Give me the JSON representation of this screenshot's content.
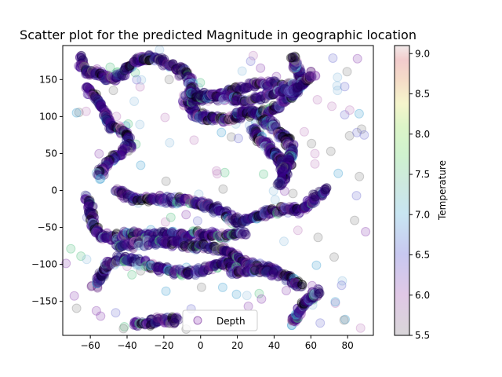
{
  "chart_data": {
    "type": "scatter",
    "title": "Scatter plot for the predicted Magnitude in geographic location",
    "xlabel": "",
    "ylabel": "",
    "xlim": [
      -75,
      94
    ],
    "ylim": [
      -196,
      196
    ],
    "x_ticks": [
      -60,
      -40,
      -20,
      0,
      20,
      40,
      60,
      80
    ],
    "y_ticks": [
      -150,
      -100,
      -50,
      0,
      50,
      100,
      150
    ],
    "grid": false,
    "legend": {
      "position": "lower-center",
      "entries": [
        "Depth"
      ]
    },
    "colorbar": {
      "label": "Temperature",
      "range": [
        5.5,
        9.1
      ],
      "ticks": [
        5.5,
        6.0,
        6.5,
        7.0,
        7.5,
        8.0,
        8.5,
        9.0
      ],
      "colormap": "nipy_spectral-like",
      "alpha": 0.2
    },
    "marker": {
      "shape": "circle",
      "alpha": 0.2,
      "dark_color": "#2a0070"
    },
    "bands": [
      {
        "name": "upper-arc",
        "points": [
          [
            -66,
            180
          ],
          [
            -63,
            160
          ],
          [
            -56,
            158
          ],
          [
            -48,
            150
          ],
          [
            -42,
            160
          ],
          [
            -36,
            175
          ],
          [
            -30,
            180
          ],
          [
            -22,
            175
          ],
          [
            -14,
            168
          ],
          [
            -8,
            158
          ],
          [
            -4,
            140
          ],
          [
            -6,
            120
          ],
          [
            -4,
            105
          ],
          [
            2,
            98
          ],
          [
            10,
            96
          ],
          [
            18,
            97
          ],
          [
            24,
            108
          ],
          [
            30,
            102
          ],
          [
            38,
            110
          ],
          [
            46,
            120
          ],
          [
            52,
            135
          ],
          [
            56,
            150
          ],
          [
            52,
            165
          ],
          [
            50,
            180
          ]
        ]
      },
      {
        "name": "upper-ribbon",
        "points": [
          [
            -10,
            118
          ],
          [
            0,
            124
          ],
          [
            10,
            130
          ],
          [
            20,
            138
          ],
          [
            30,
            145
          ],
          [
            40,
            144
          ],
          [
            50,
            140
          ],
          [
            56,
            146
          ],
          [
            62,
            160
          ]
        ]
      },
      {
        "name": "upper-ribbon-2",
        "points": [
          [
            -8,
            132
          ],
          [
            4,
            128
          ],
          [
            14,
            126
          ],
          [
            24,
            120
          ],
          [
            36,
            128
          ],
          [
            46,
            134
          ],
          [
            54,
            140
          ]
        ]
      },
      {
        "name": "left-wave",
        "points": [
          [
            -62,
            138
          ],
          [
            -56,
            122
          ],
          [
            -52,
            105
          ],
          [
            -50,
            90
          ],
          [
            -42,
            80
          ],
          [
            -38,
            64
          ],
          [
            -44,
            48
          ],
          [
            -52,
            32
          ],
          [
            -56,
            18
          ]
        ]
      },
      {
        "name": "mid-left",
        "points": [
          [
            -62,
            -10
          ],
          [
            -60,
            -30
          ],
          [
            -58,
            -50
          ],
          [
            -55,
            -60
          ],
          [
            -48,
            -65
          ],
          [
            -40,
            -58
          ],
          [
            -30,
            -62
          ],
          [
            -20,
            -58
          ],
          [
            -10,
            -62
          ],
          [
            -2,
            -58
          ],
          [
            6,
            -60
          ],
          [
            16,
            -62
          ],
          [
            24,
            -58
          ]
        ]
      },
      {
        "name": "mid-wave",
        "points": [
          [
            -46,
            0
          ],
          [
            -38,
            -12
          ],
          [
            -28,
            -10
          ],
          [
            -18,
            -12
          ],
          [
            -8,
            -14
          ],
          [
            0,
            -18
          ],
          [
            6,
            -22
          ],
          [
            14,
            -32
          ],
          [
            22,
            -45
          ],
          [
            30,
            -35
          ],
          [
            38,
            -28
          ],
          [
            48,
            -24
          ],
          [
            56,
            -26
          ],
          [
            62,
            -10
          ],
          [
            70,
            2
          ]
        ]
      },
      {
        "name": "mid-ribbon",
        "points": [
          [
            -46,
            -78
          ],
          [
            -36,
            -72
          ],
          [
            -24,
            -70
          ],
          [
            -14,
            -72
          ],
          [
            -4,
            -74
          ],
          [
            6,
            -78
          ],
          [
            14,
            -82
          ],
          [
            20,
            -90
          ],
          [
            26,
            -100
          ],
          [
            34,
            -104
          ],
          [
            42,
            -110
          ],
          [
            50,
            -120
          ],
          [
            54,
            -130
          ]
        ]
      },
      {
        "name": "lower-band",
        "points": [
          [
            -58,
            -130
          ],
          [
            -54,
            -112
          ],
          [
            -50,
            -100
          ],
          [
            -42,
            -92
          ],
          [
            -34,
            -96
          ],
          [
            -24,
            -104
          ],
          [
            -14,
            -110
          ],
          [
            -4,
            -110
          ],
          [
            6,
            -104
          ],
          [
            14,
            -98
          ],
          [
            20,
            -110
          ],
          [
            30,
            -108
          ],
          [
            40,
            -112
          ]
        ]
      },
      {
        "name": "bottom-arc",
        "points": [
          [
            -36,
            -180
          ],
          [
            -28,
            -178
          ],
          [
            -20,
            -176
          ],
          [
            -12,
            -176
          ]
        ]
      },
      {
        "name": "bottom-right",
        "points": [
          [
            50,
            -180
          ],
          [
            52,
            -168
          ],
          [
            56,
            -156
          ],
          [
            60,
            -144
          ],
          [
            64,
            -136
          ]
        ]
      },
      {
        "name": "center-blob",
        "points": [
          [
            28,
            82
          ],
          [
            32,
            70
          ],
          [
            36,
            60
          ],
          [
            40,
            50
          ],
          [
            44,
            40
          ],
          [
            46,
            20
          ],
          [
            42,
            8
          ]
        ]
      },
      {
        "name": "right-ribbon",
        "points": [
          [
            34,
            96
          ],
          [
            40,
            86
          ],
          [
            44,
            74
          ],
          [
            48,
            64
          ],
          [
            50,
            52
          ],
          [
            48,
            38
          ],
          [
            44,
            26
          ]
        ]
      }
    ]
  }
}
